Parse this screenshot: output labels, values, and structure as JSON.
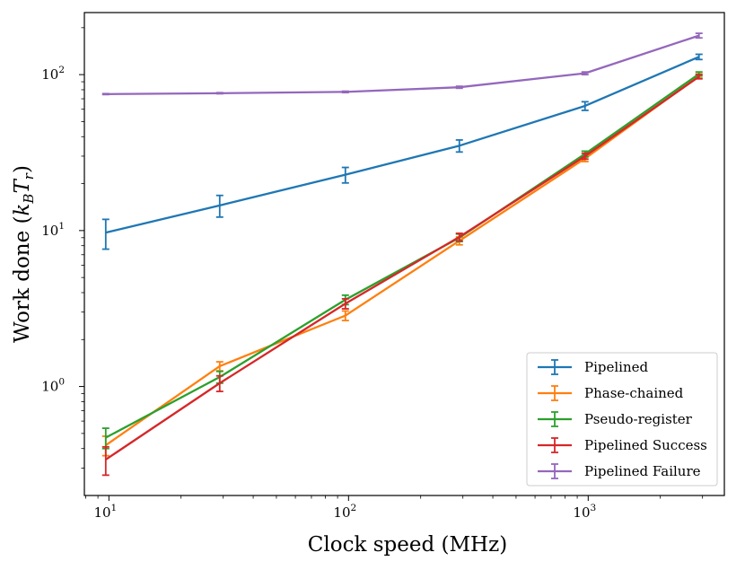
{
  "chart_data": {
    "type": "line",
    "xscale": "log",
    "yscale": "log",
    "xlim": [
      7.9,
      3700
    ],
    "ylim": [
      0.2,
      250
    ],
    "x": [
      9.7,
      29,
      97,
      290,
      970,
      2900
    ],
    "xlabel": "Clock speed (MHz)",
    "ylabel": "Work done (k_B T_r)",
    "xticks": [
      {
        "value": 10,
        "label": "10",
        "exp": "1"
      },
      {
        "value": 100,
        "label": "10",
        "exp": "2"
      },
      {
        "value": 1000,
        "label": "10",
        "exp": "3"
      }
    ],
    "yticks": [
      {
        "value": 1,
        "label": "10",
        "exp": "0"
      },
      {
        "value": 10,
        "label": "10",
        "exp": "1"
      },
      {
        "value": 100,
        "label": "10",
        "exp": "2"
      }
    ],
    "legend_position": "lower right",
    "series": [
      {
        "name": "Pipelined",
        "color": "#1f77b4",
        "values": [
          9.7,
          14.5,
          22.8,
          35,
          63,
          130
        ],
        "err": [
          2.1,
          2.3,
          2.6,
          3.1,
          4,
          5
        ]
      },
      {
        "name": "Phase-chained",
        "color": "#ff7f0e",
        "values": [
          0.42,
          1.35,
          2.85,
          8.6,
          29,
          98
        ],
        "err": [
          0.06,
          0.09,
          0.2,
          0.5,
          1.3,
          3
        ]
      },
      {
        "name": "Pseudo-register",
        "color": "#2ca02c",
        "values": [
          0.47,
          1.15,
          3.6,
          9,
          31,
          101
        ],
        "err": [
          0.07,
          0.1,
          0.25,
          0.5,
          1.3,
          3
        ]
      },
      {
        "name": "Pipelined Success",
        "color": "#d62728",
        "values": [
          0.34,
          1.05,
          3.4,
          9.1,
          30,
          97
        ],
        "err": [
          0.07,
          0.12,
          0.25,
          0.5,
          1.3,
          3
        ]
      },
      {
        "name": "Pipelined Failure",
        "color": "#9467bd",
        "values": [
          75,
          76,
          77.5,
          83,
          102,
          178
        ],
        "err": [
          0.5,
          0.6,
          0.8,
          1.2,
          2,
          6
        ]
      }
    ]
  }
}
